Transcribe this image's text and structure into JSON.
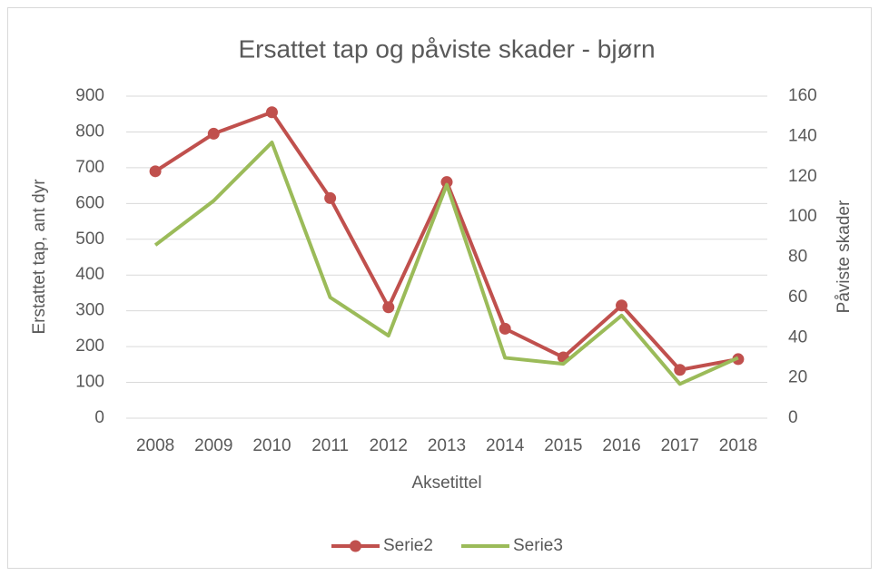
{
  "chart_data": {
    "type": "line",
    "title": "Ersattet tap og påviste skader - bjørn",
    "x_label": "Aksetittel",
    "y_label": "Erstattet tap, ant dyr",
    "y2_label": "Påviste skader",
    "categories": [
      "2008",
      "2009",
      "2010",
      "2011",
      "2012",
      "2013",
      "2014",
      "2015",
      "2016",
      "2017",
      "2018"
    ],
    "series": [
      {
        "name": "Serie2",
        "color": "#c0504d",
        "marker": true,
        "values": [
          690,
          795,
          855,
          615,
          310,
          660,
          250,
          170,
          315,
          135,
          165
        ]
      },
      {
        "name": "Serie3",
        "color": "#9bbb59",
        "marker": false,
        "axis": "y2",
        "values": [
          86,
          108,
          137,
          60,
          41,
          116,
          30,
          27,
          51,
          17,
          30
        ]
      }
    ],
    "ylim": [
      0,
      900
    ],
    "yticks": [
      0,
      100,
      200,
      300,
      400,
      500,
      600,
      700,
      800,
      900
    ],
    "y2lim": [
      0,
      160
    ],
    "y2ticks": [
      0,
      20,
      40,
      60,
      80,
      100,
      120,
      140,
      160
    ],
    "grid": true,
    "legend": "bottom"
  }
}
